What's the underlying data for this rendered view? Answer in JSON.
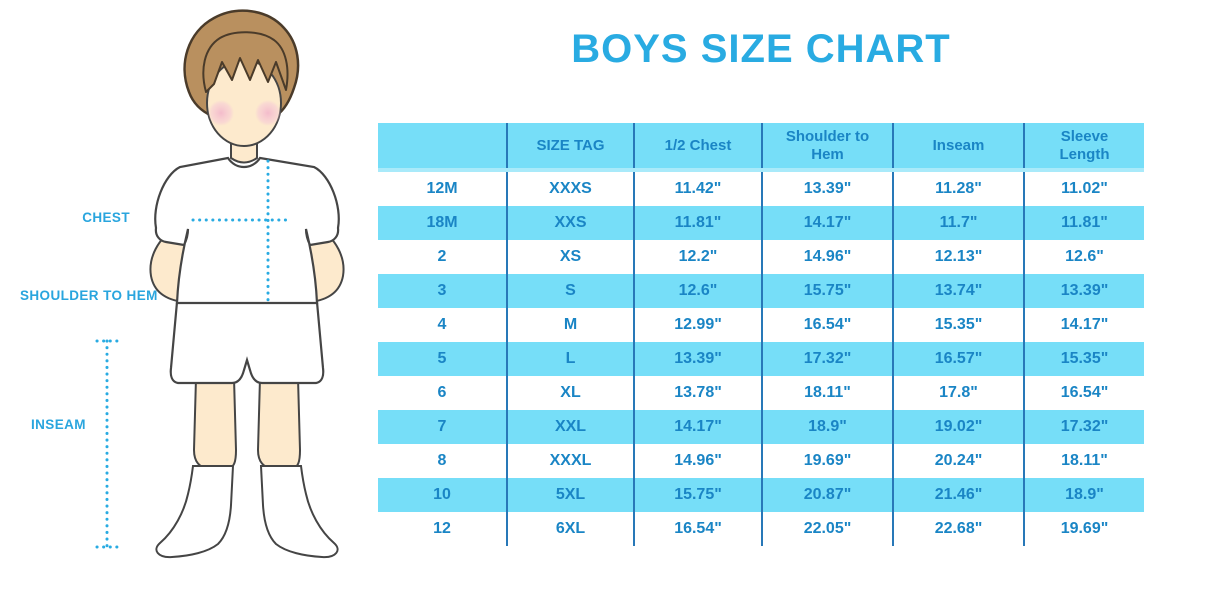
{
  "title": "BOYS SIZE CHART",
  "figure_labels": {
    "chest": "CHEST",
    "shoulder_to_hem": "SHOULDER TO HEM",
    "inseam": "INSEAM"
  },
  "chart_data": {
    "type": "table",
    "title": "BOYS SIZE CHART",
    "columns": [
      "",
      "SIZE TAG",
      "1/2 Chest",
      "Shoulder to Hem",
      "Inseam",
      "Sleeve Length"
    ],
    "rows": [
      [
        "12M",
        "XXXS",
        "11.42\"",
        "13.39\"",
        "11.28\"",
        "11.02\""
      ],
      [
        "18M",
        "XXS",
        "11.81\"",
        "14.17\"",
        "11.7\"",
        "11.81\""
      ],
      [
        "2",
        "XS",
        "12.2\"",
        "14.96\"",
        "12.13\"",
        "12.6\""
      ],
      [
        "3",
        "S",
        "12.6\"",
        "15.75\"",
        "13.74\"",
        "13.39\""
      ],
      [
        "4",
        "M",
        "12.99\"",
        "16.54\"",
        "15.35\"",
        "14.17\""
      ],
      [
        "5",
        "L",
        "13.39\"",
        "17.32\"",
        "16.57\"",
        "15.35\""
      ],
      [
        "6",
        "XL",
        "13.78\"",
        "18.11\"",
        "17.8\"",
        "16.54\""
      ],
      [
        "7",
        "XXL",
        "14.17\"",
        "18.9\"",
        "19.02\"",
        "17.32\""
      ],
      [
        "8",
        "XXXL",
        "14.96\"",
        "19.69\"",
        "20.24\"",
        "18.11\""
      ],
      [
        "10",
        "5XL",
        "15.75\"",
        "20.87\"",
        "21.46\"",
        "18.9\""
      ],
      [
        "12",
        "6XL",
        "16.54\"",
        "22.05\"",
        "22.68\"",
        "19.69\""
      ]
    ],
    "banded_row_indices": [
      1,
      3,
      5,
      7,
      9
    ],
    "units": "inches"
  },
  "colors": {
    "accent_blue": "#29abe2",
    "table_text_blue": "#1a85c5",
    "band_cyan": "#76def8",
    "header_bottom_strip": "#a9eafa",
    "grid_blue": "#2878b8",
    "skin": "#fdeacd",
    "hair": "#b9905f",
    "cheek_pink": "#f3b9cb"
  }
}
